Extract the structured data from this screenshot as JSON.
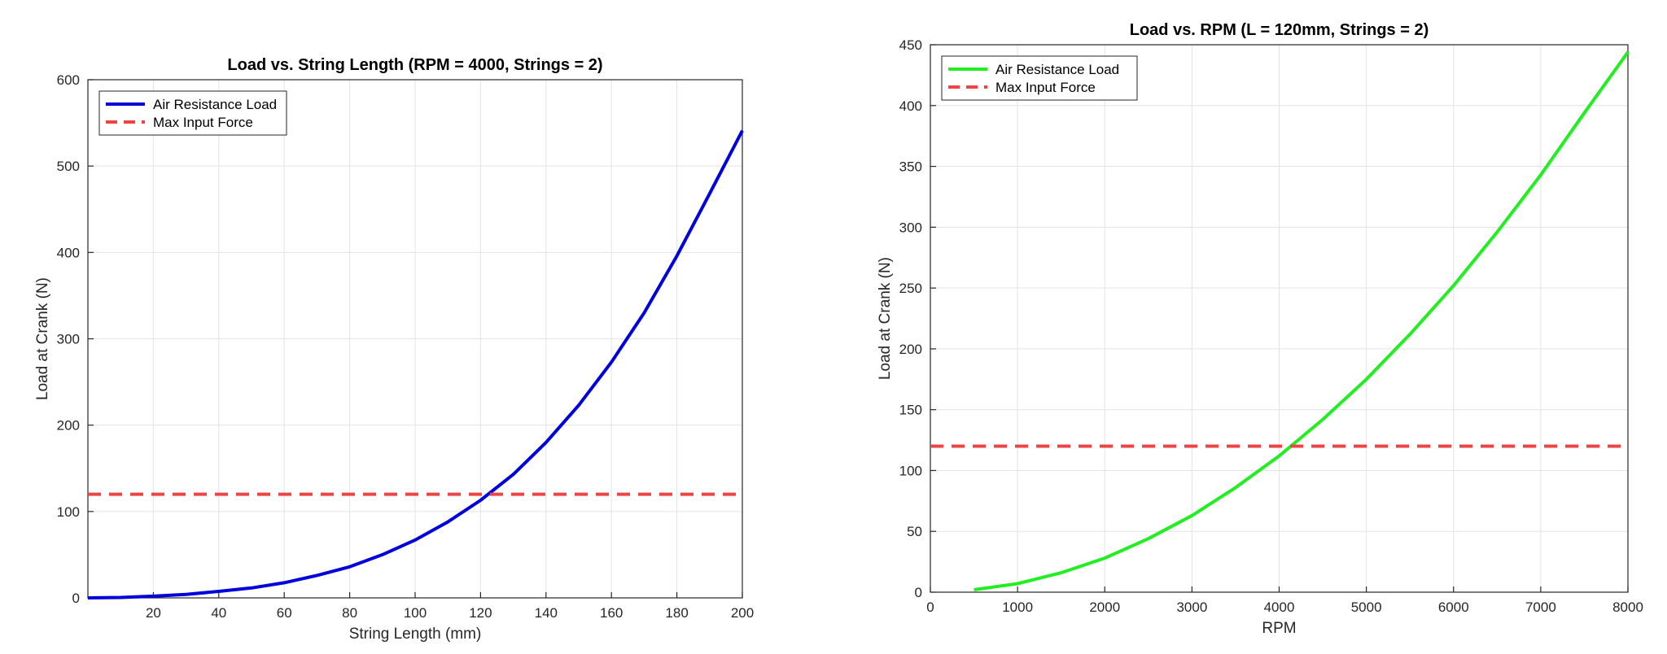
{
  "chart_data": [
    {
      "type": "line",
      "title": "Load vs. String Length (RPM = 4000, Strings = 2)",
      "xlabel": "String Length (mm)",
      "ylabel": "Load at Crank (N)",
      "xlim": [
        0,
        200
      ],
      "ylim": [
        0,
        600
      ],
      "xticks": [
        20,
        40,
        60,
        80,
        100,
        120,
        140,
        160,
        180,
        200
      ],
      "yticks": [
        0,
        100,
        200,
        300,
        400,
        500,
        600
      ],
      "grid": true,
      "legend_position": "top-left",
      "series": [
        {
          "name": "Air Resistance Load",
          "color": "#0000dd",
          "style": "solid",
          "x": [
            0,
            10,
            20,
            30,
            40,
            50,
            60,
            70,
            80,
            90,
            100,
            110,
            120,
            130,
            140,
            150,
            160,
            170,
            180,
            190,
            200
          ],
          "y": [
            0,
            0.5,
            2,
            4,
            7.5,
            11.5,
            17.5,
            26,
            36,
            50,
            67,
            88,
            113,
            143,
            180,
            223,
            273,
            330,
            396,
            468,
            541
          ]
        },
        {
          "name": "Max Input Force",
          "color": "#ee4444",
          "style": "dashed",
          "x": [
            0,
            200
          ],
          "y": [
            120,
            120
          ]
        }
      ]
    },
    {
      "type": "line",
      "title": "Load vs. RPM (L = 120mm, Strings = 2)",
      "xlabel": "RPM",
      "ylabel": "Load at Crank (N)",
      "xlim": [
        0,
        8000
      ],
      "ylim": [
        0,
        450
      ],
      "xticks": [
        0,
        1000,
        2000,
        3000,
        4000,
        5000,
        6000,
        7000,
        8000
      ],
      "yticks": [
        0,
        50,
        100,
        150,
        200,
        250,
        300,
        350,
        400,
        450
      ],
      "grid": true,
      "legend_position": "top-left",
      "series": [
        {
          "name": "Air Resistance Load",
          "color": "#22ee22",
          "style": "solid",
          "x": [
            500,
            1000,
            1500,
            2000,
            2500,
            3000,
            3500,
            4000,
            4500,
            5000,
            5500,
            6000,
            6500,
            7000,
            7500,
            8000
          ],
          "y": [
            2,
            7,
            16,
            28,
            44,
            63,
            86,
            112,
            142,
            175,
            212,
            252,
            296,
            343,
            394,
            444
          ]
        },
        {
          "name": "Max Input Force",
          "color": "#ee4444",
          "style": "dashed",
          "x": [
            0,
            8000
          ],
          "y": [
            120,
            120
          ]
        }
      ]
    }
  ]
}
